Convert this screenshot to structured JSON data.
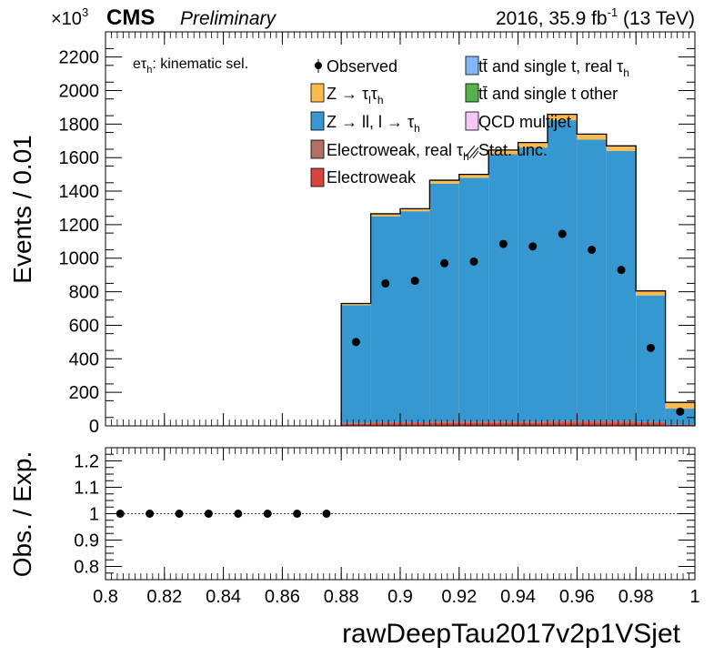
{
  "header": {
    "multiplier_base": "×10",
    "multiplier_exp": "3",
    "experiment": "CMS",
    "status": "Preliminary",
    "lumi_prefix": "2016, 35.9 fb",
    "lumi_exp": "-1",
    "lumi_suffix": " (13 TeV)"
  },
  "channel_label": {
    "prefix": "eτ",
    "sub": "h",
    "suffix": ": kinematic sel."
  },
  "legend": {
    "observed": "Observed",
    "ztt_main": "Z → τ",
    "ztt_sub1": "l",
    "ztt_mid": "τ",
    "ztt_sub2": "h",
    "zll_main": "Z → ll, l → τ",
    "zll_sub": "h",
    "ewk_real_main": "Electroweak, real τ",
    "ewk_real_sub": "h",
    "ewk": "Electroweak",
    "ttreal_main": "tt̄ and single t, real  τ",
    "ttreal_sub": "h",
    "ttother": "tt̄ and single t other",
    "qcd": "QCD multijet",
    "stat_unc": "Stat. unc."
  },
  "colors": {
    "ztt": "#fdba4d",
    "zll": "#3797d0",
    "ewk_real": "#b26f63",
    "ewk": "#d6443e",
    "tt_real": "#7fb9f8",
    "tt_other": "#55b24a",
    "qcd": "#f6c6f7",
    "observed": "#000000"
  },
  "axes": {
    "main_ylabel": "Events / 0.01",
    "ratio_ylabel": "Obs. / Exp.",
    "xlabel": "rawDeepTau2017v2p1VSjet",
    "main_yticks": [
      "0",
      "200",
      "400",
      "600",
      "800",
      "1000",
      "1200",
      "1400",
      "1600",
      "1800",
      "2000",
      "2200"
    ],
    "ratio_yticks": [
      "0.8",
      "0.9",
      "1",
      "1.1",
      "1.2"
    ],
    "xticks": [
      "0.8",
      "0.82",
      "0.84",
      "0.86",
      "0.88",
      "0.9",
      "0.92",
      "0.94",
      "0.96",
      "0.98",
      "1"
    ]
  },
  "chart_data": [
    {
      "type": "bar",
      "stacked": true,
      "scale": "x 10^3 events",
      "bin_edges": [
        0.8,
        0.81,
        0.82,
        0.83,
        0.84,
        0.85,
        0.86,
        0.87,
        0.88,
        0.89,
        0.9,
        0.91,
        0.92,
        0.93,
        0.94,
        0.95,
        0.96,
        0.97,
        0.98,
        0.99,
        1.0
      ],
      "xlim": [
        0.8,
        1.0
      ],
      "ylim": [
        0,
        2350
      ],
      "series": [
        {
          "name": "Electroweak",
          "values": [
            0,
            0,
            0,
            0,
            0,
            0,
            0,
            0,
            12,
            15,
            15,
            18,
            18,
            18,
            18,
            20,
            20,
            20,
            16,
            6
          ]
        },
        {
          "name": "Electroweak, real τh",
          "values": [
            0,
            0,
            0,
            0,
            0,
            0,
            0,
            0,
            6,
            7,
            7,
            8,
            8,
            8,
            8,
            9,
            9,
            9,
            7,
            2
          ]
        },
        {
          "name": "Z → ll, l → τh",
          "values": [
            0,
            0,
            0,
            0,
            0,
            0,
            0,
            0,
            702,
            1228,
            1258,
            1419,
            1454,
            1594,
            1634,
            1794,
            1679,
            1611,
            755,
            95
          ]
        },
        {
          "name": "Z → τlτh",
          "values": [
            0,
            0,
            0,
            0,
            0,
            0,
            0,
            0,
            10,
            15,
            15,
            20,
            20,
            25,
            30,
            35,
            32,
            30,
            27,
            37
          ]
        }
      ],
      "observed": {
        "name": "Observed",
        "x": [
          0.885,
          0.895,
          0.905,
          0.915,
          0.925,
          0.935,
          0.945,
          0.955,
          0.965,
          0.975,
          0.985,
          0.995
        ],
        "y": [
          500,
          850,
          865,
          970,
          980,
          1085,
          1070,
          1145,
          1050,
          930,
          465,
          85
        ]
      }
    },
    {
      "type": "scatter",
      "xlim": [
        0.8,
        1.0
      ],
      "ylim": [
        0.75,
        1.25
      ],
      "x": [
        0.805,
        0.815,
        0.825,
        0.835,
        0.845,
        0.855,
        0.865,
        0.875
      ],
      "y": [
        1,
        1,
        1,
        1,
        1,
        1,
        1,
        1
      ]
    }
  ]
}
